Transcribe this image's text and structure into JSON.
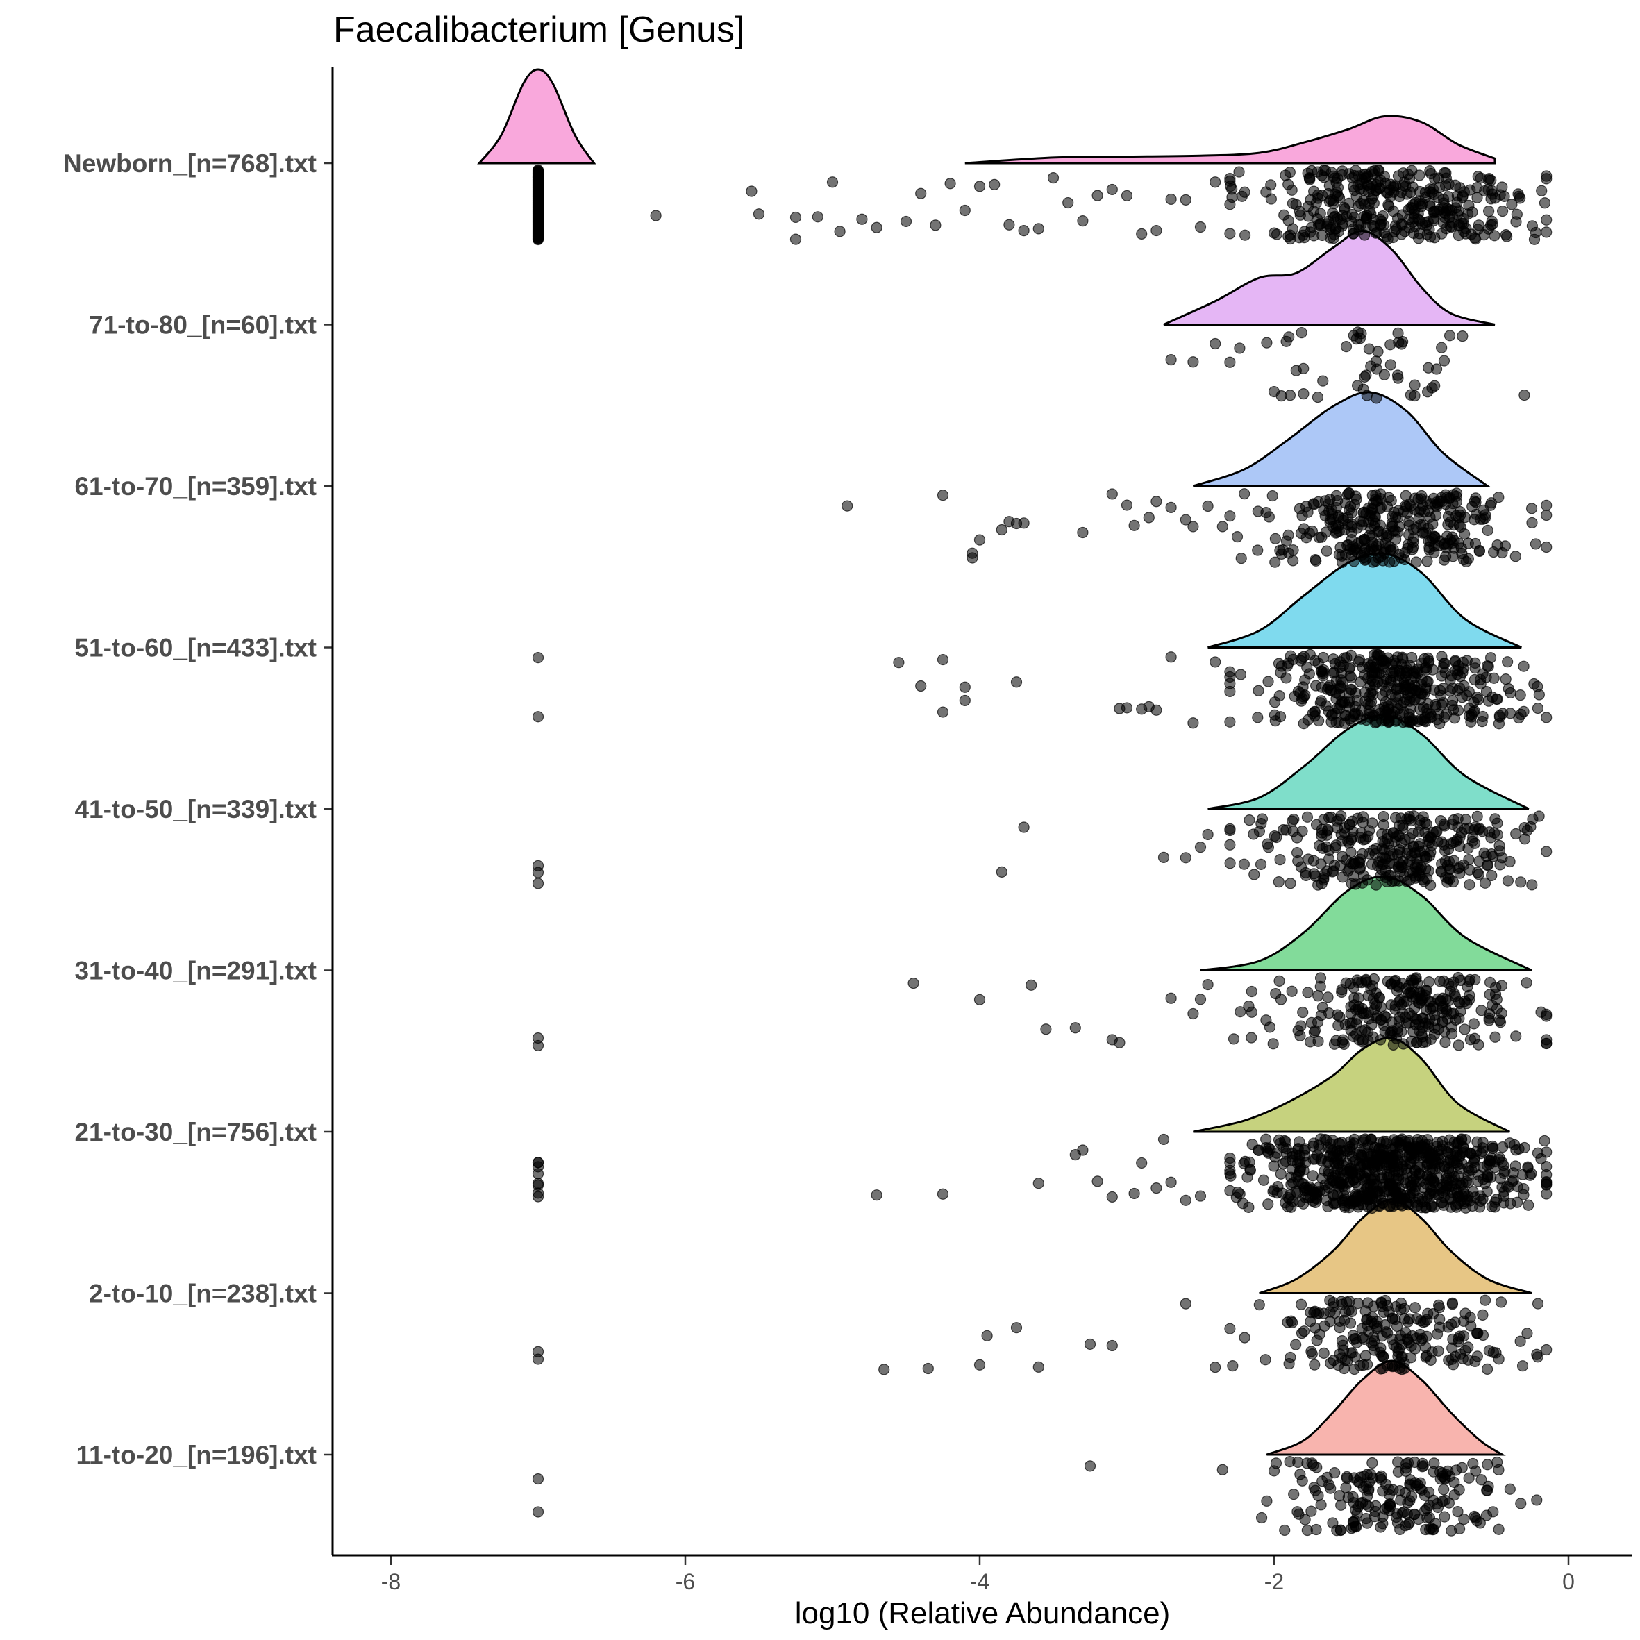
{
  "chart_data": {
    "type": "ridgeline",
    "title": "Faecalibacterium [Genus]",
    "xlabel": "log10 (Relative Abundance)",
    "ylabel": "",
    "xlim": [
      -8.4,
      0.4
    ],
    "xticks": [
      -8,
      -6,
      -4,
      -2,
      0
    ],
    "grid": false,
    "legend": "none",
    "point_color": "#000000",
    "point_opacity": 0.55,
    "groups": [
      {
        "label": "Newborn_[n=768].txt",
        "color": "#F9A8DC",
        "n": 768,
        "density_x": [
          -7.4,
          -7.25,
          -7.1,
          -7.0,
          -6.9,
          -6.75,
          -6.62
        ],
        "density_y": [
          0.0,
          0.3,
          0.85,
          1.0,
          0.85,
          0.3,
          0.0
        ],
        "density2_x": [
          -4.1,
          -3.5,
          -3.0,
          -2.5,
          -2.1,
          -1.8,
          -1.5,
          -1.25,
          -1.0,
          -0.75,
          -0.5
        ],
        "density2_y": [
          0.0,
          0.06,
          0.07,
          0.08,
          0.11,
          0.22,
          0.36,
          0.5,
          0.44,
          0.2,
          0.05
        ],
        "zeros": 120,
        "zero_value": -7.0,
        "outliers": [
          -6.2,
          -5.55,
          -5.5,
          -5.25,
          -5.25,
          -5.1,
          -5.0,
          -4.95,
          -4.8,
          -4.7,
          -4.5,
          -4.4,
          -4.3,
          -4.2,
          -4.1,
          -4.0,
          -3.9,
          -3.8,
          -3.7,
          -3.6,
          -3.5,
          -3.4,
          -3.3,
          -3.2,
          -3.1,
          -3.0,
          -2.9,
          -2.8,
          -2.7,
          -2.6,
          -2.5,
          -2.4,
          -2.3,
          -2.2
        ],
        "center": -1.2,
        "spread": 0.45,
        "bulk": 360
      },
      {
        "label": "71-to-80_[n=60].txt",
        "color": "#E5B6F5",
        "n": 60,
        "density_x": [
          -2.75,
          -2.4,
          -2.1,
          -1.85,
          -1.6,
          -1.4,
          -1.2,
          -1.0,
          -0.8,
          -0.5
        ],
        "density_y": [
          0.0,
          0.25,
          0.5,
          0.55,
          0.82,
          1.0,
          0.8,
          0.4,
          0.12,
          0.0
        ],
        "outliers": [
          -2.7,
          -2.55,
          -2.4,
          -2.3,
          -2.05,
          -2.0,
          -1.95,
          -1.9,
          -1.85,
          -1.8,
          -0.3
        ],
        "center": -1.3,
        "spread": 0.28,
        "bulk": 45
      },
      {
        "label": "61-to-70_[n=359].txt",
        "color": "#ADC8F7",
        "n": 359,
        "density_x": [
          -2.55,
          -2.2,
          -1.9,
          -1.6,
          -1.35,
          -1.1,
          -0.85,
          -0.55
        ],
        "density_y": [
          0.0,
          0.18,
          0.5,
          0.85,
          1.0,
          0.8,
          0.35,
          0.0
        ],
        "outliers": [
          -4.9,
          -4.25,
          -4.05,
          -4.05,
          -4.0,
          -3.85,
          -3.8,
          -3.75,
          -3.7,
          -3.3,
          -3.1,
          -3.0,
          -2.95,
          -2.85,
          -2.8,
          -2.7,
          -2.6,
          -2.55,
          -2.45,
          -2.35,
          -2.25
        ],
        "center": -1.25,
        "spread": 0.42,
        "bulk": 320
      },
      {
        "label": "51-to-60_[n=433].txt",
        "color": "#7FDAEE",
        "n": 433,
        "density_x": [
          -2.45,
          -2.1,
          -1.8,
          -1.5,
          -1.25,
          -1.0,
          -0.7,
          -0.32
        ],
        "density_y": [
          0.0,
          0.18,
          0.55,
          0.9,
          1.0,
          0.8,
          0.3,
          0.0
        ],
        "zeros": 2,
        "zero_value": -7.0,
        "outliers": [
          -4.55,
          -4.4,
          -4.25,
          -4.25,
          -4.1,
          -4.1,
          -3.75,
          -3.05,
          -3.0,
          -2.9,
          -2.85,
          -2.8,
          -2.7,
          -2.55,
          -2.4
        ],
        "center": -1.2,
        "spread": 0.42,
        "bulk": 400
      },
      {
        "label": "41-to-50_[n=339].txt",
        "color": "#7FDECA",
        "n": 339,
        "density_x": [
          -2.45,
          -2.1,
          -1.8,
          -1.5,
          -1.25,
          -1.0,
          -0.7,
          -0.27
        ],
        "density_y": [
          0.0,
          0.12,
          0.45,
          0.85,
          1.0,
          0.8,
          0.35,
          0.0
        ],
        "zeros": 3,
        "zero_value": -7.0,
        "outliers": [
          -3.85,
          -3.7,
          -2.75,
          -2.6,
          -2.5,
          -2.45,
          -0.2,
          -0.15
        ],
        "center": -1.2,
        "spread": 0.42,
        "bulk": 320
      },
      {
        "label": "31-to-40_[n=291].txt",
        "color": "#82DB9A",
        "n": 291,
        "density_x": [
          -2.5,
          -2.1,
          -1.8,
          -1.5,
          -1.25,
          -1.0,
          -0.7,
          -0.25
        ],
        "density_y": [
          0.0,
          0.1,
          0.4,
          0.85,
          1.0,
          0.8,
          0.35,
          0.0
        ],
        "zeros": 2,
        "zero_value": -7.0,
        "outliers": [
          -4.45,
          -4.0,
          -3.65,
          -3.55,
          -3.35,
          -3.1,
          -3.05,
          -2.7,
          -2.55,
          -2.5,
          -2.45
        ],
        "center": -1.15,
        "spread": 0.42,
        "bulk": 270
      },
      {
        "label": "21-to-30_[n=756].txt",
        "color": "#C6D27E",
        "n": 756,
        "density_x": [
          -2.55,
          -2.2,
          -1.9,
          -1.6,
          -1.4,
          -1.2,
          -1.0,
          -0.75,
          -0.4
        ],
        "density_y": [
          0.0,
          0.12,
          0.32,
          0.6,
          0.88,
          1.0,
          0.78,
          0.3,
          0.0
        ],
        "zeros": 8,
        "zero_value": -7.0,
        "outliers": [
          -4.7,
          -4.25,
          -3.6,
          -3.35,
          -3.3,
          -3.2,
          -3.1,
          -2.95,
          -2.9,
          -2.8,
          -2.75,
          -2.7,
          -2.6,
          -2.5
        ],
        "center": -1.2,
        "spread": 0.45,
        "bulk": 720
      },
      {
        "label": "2-to-10_[n=238].txt",
        "color": "#E7C685",
        "n": 238,
        "density_x": [
          -2.1,
          -1.85,
          -1.6,
          -1.4,
          -1.2,
          -1.0,
          -0.8,
          -0.55,
          -0.25
        ],
        "density_y": [
          0.0,
          0.15,
          0.45,
          0.8,
          1.0,
          0.8,
          0.45,
          0.15,
          0.0
        ],
        "zeros": 2,
        "zero_value": -7.0,
        "outliers": [
          -4.65,
          -4.35,
          -4.0,
          -3.95,
          -3.75,
          -3.6,
          -3.25,
          -3.1,
          -2.6,
          -2.4,
          -2.2,
          -2.1
        ],
        "center": -1.2,
        "spread": 0.4,
        "bulk": 215
      },
      {
        "label": "11-to-20_[n=196].txt",
        "color": "#F8B4AE",
        "n": 196,
        "density_x": [
          -2.05,
          -1.8,
          -1.6,
          -1.4,
          -1.2,
          -1.0,
          -0.8,
          -0.6,
          -0.45
        ],
        "density_y": [
          0.0,
          0.15,
          0.45,
          0.8,
          1.0,
          0.8,
          0.45,
          0.15,
          0.0
        ],
        "zeros": 2,
        "zero_value": -7.0,
        "outliers": [
          -3.25,
          -2.35,
          -2.05,
          -2.0
        ],
        "center": -1.2,
        "spread": 0.35,
        "bulk": 190
      }
    ]
  }
}
